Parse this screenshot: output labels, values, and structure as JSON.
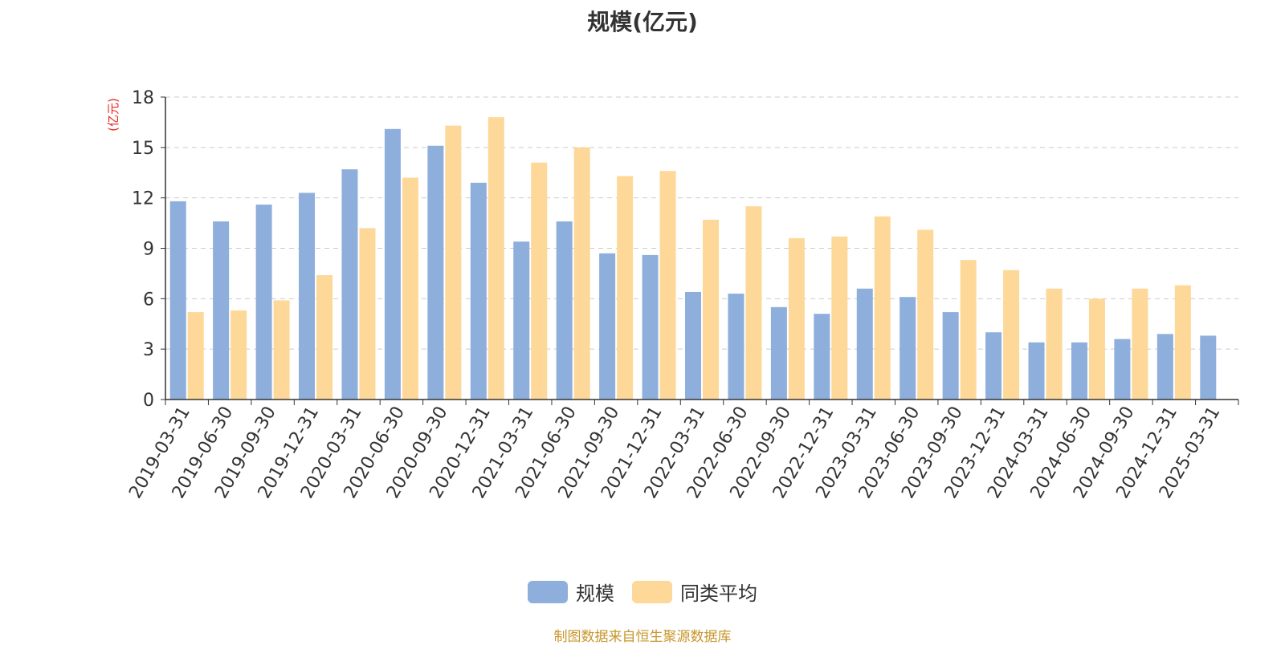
{
  "chart_data": {
    "type": "bar",
    "title": "规模(亿元)",
    "ylabel": "(亿元)",
    "ylim": [
      0,
      18
    ],
    "yticks": [
      0,
      3,
      6,
      9,
      12,
      15,
      18
    ],
    "grid": true,
    "legend_position": "bottom",
    "categories": [
      "2019-03-31",
      "2019-06-30",
      "2019-09-30",
      "2019-12-31",
      "2020-03-31",
      "2020-06-30",
      "2020-09-30",
      "2020-12-31",
      "2021-03-31",
      "2021-06-30",
      "2021-09-30",
      "2021-12-31",
      "2022-03-31",
      "2022-06-30",
      "2022-09-30",
      "2022-12-31",
      "2023-03-31",
      "2023-06-30",
      "2023-09-30",
      "2023-12-31",
      "2024-03-31",
      "2024-06-30",
      "2024-09-30",
      "2024-12-31",
      "2025-03-31"
    ],
    "series": [
      {
        "name": "规模",
        "color": "#8eaedc",
        "values": [
          11.8,
          10.6,
          11.6,
          12.3,
          13.7,
          16.1,
          15.1,
          12.9,
          9.4,
          10.6,
          8.7,
          8.6,
          6.4,
          6.3,
          5.5,
          5.1,
          6.6,
          6.1,
          5.2,
          4.0,
          3.4,
          3.4,
          3.6,
          3.9,
          3.8
        ]
      },
      {
        "name": "同类平均",
        "color": "#fdd899",
        "values": [
          5.2,
          5.3,
          5.9,
          7.4,
          10.2,
          13.2,
          16.3,
          16.8,
          14.1,
          15.0,
          13.3,
          13.6,
          10.7,
          11.5,
          9.6,
          9.7,
          10.9,
          10.1,
          8.3,
          7.7,
          6.6,
          6.0,
          6.6,
          6.8,
          null
        ]
      }
    ]
  },
  "source_text": "制图数据来自恒生聚源数据库"
}
